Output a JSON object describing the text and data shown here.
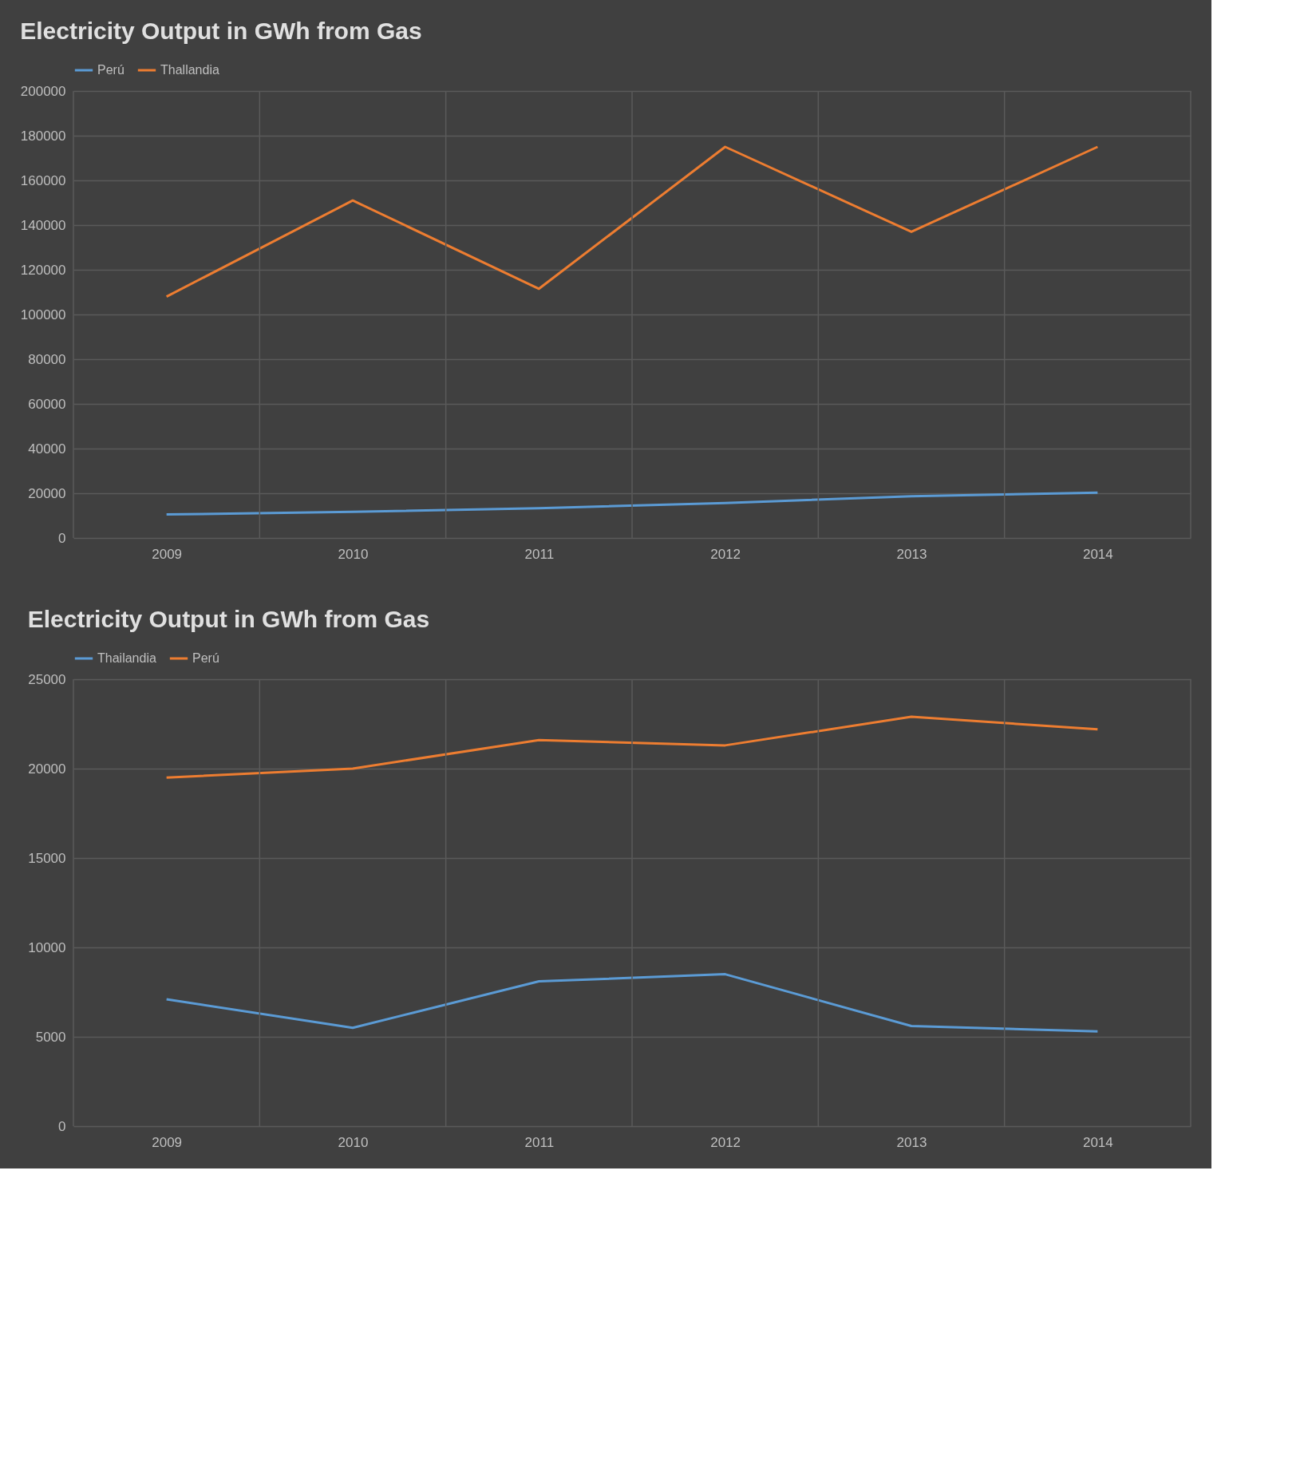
{
  "chart_data": [
    {
      "type": "line",
      "title": "Electricity Output in GWh from Gas",
      "categories": [
        "2009",
        "2010",
        "2011",
        "2012",
        "2013",
        "2014"
      ],
      "series": [
        {
          "name": "Perú",
          "color": "#5b9bd5",
          "values": [
            10500,
            11700,
            13300,
            15600,
            18700,
            20300
          ]
        },
        {
          "name": "Thallandia",
          "color": "#ed7d31",
          "values": [
            108000,
            151000,
            111500,
            175000,
            137000,
            175000
          ]
        }
      ],
      "ylim": [
        0,
        200000
      ],
      "yticks": [
        0,
        20000,
        40000,
        60000,
        80000,
        100000,
        120000,
        140000,
        160000,
        180000,
        200000
      ],
      "grid": true,
      "legend": "top",
      "marker": "none",
      "line_style": "solid"
    },
    {
      "type": "line",
      "title": "Electricity Output in GWh from Gas",
      "categories": [
        "2009",
        "2010",
        "2011",
        "2012",
        "2013",
        "2014"
      ],
      "series": [
        {
          "name": "Thailandia",
          "color": "#5b9bd5",
          "values": [
            7100,
            5500,
            8100,
            8500,
            5600,
            5300
          ]
        },
        {
          "name": "Perú",
          "color": "#ed7d31",
          "values": [
            19500,
            20000,
            21600,
            21300,
            22900,
            22200
          ]
        }
      ],
      "ylim": [
        0,
        25000
      ],
      "yticks": [
        0,
        5000,
        10000,
        15000,
        20000,
        25000
      ],
      "grid": true,
      "legend": "top",
      "marker": "none",
      "line_style": "solid"
    }
  ]
}
